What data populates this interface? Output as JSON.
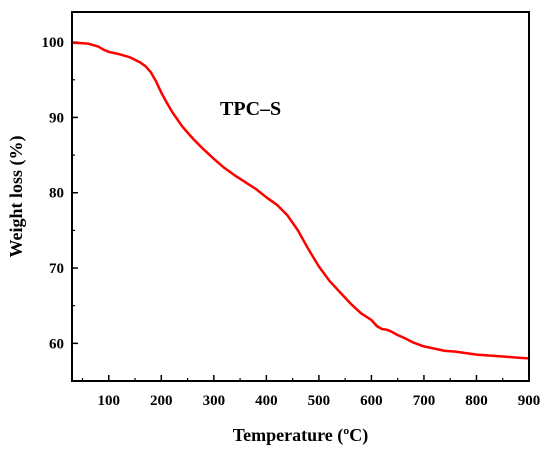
{
  "chart_data": {
    "type": "line",
    "xlabel": "Temperature (ºC)",
    "ylabel": "Weight loss (%)",
    "xlim": [
      30,
      900
    ],
    "ylim": [
      55,
      104
    ],
    "xticks": [
      100,
      200,
      300,
      400,
      500,
      600,
      700,
      800,
      900
    ],
    "yticks": [
      60,
      70,
      80,
      90,
      100
    ],
    "grid": false,
    "legend": "none",
    "annotations": [
      {
        "text": "TPC–S",
        "x": 370,
        "y": 90.3
      }
    ],
    "series": [
      {
        "color": "#ff0000",
        "x": [
          30,
          40,
          60,
          80,
          90,
          100,
          120,
          140,
          160,
          170,
          180,
          190,
          200,
          210,
          220,
          240,
          260,
          280,
          300,
          320,
          340,
          360,
          380,
          400,
          420,
          440,
          460,
          480,
          500,
          520,
          540,
          560,
          580,
          600,
          610,
          620,
          630,
          640,
          650,
          660,
          680,
          700,
          720,
          740,
          760,
          780,
          800,
          820,
          840,
          860,
          880,
          900
        ],
        "y": [
          99.9,
          99.9,
          99.8,
          99.4,
          99.0,
          98.7,
          98.4,
          98.0,
          97.3,
          96.8,
          96.0,
          94.8,
          93.3,
          92.0,
          90.8,
          88.8,
          87.2,
          85.8,
          84.5,
          83.3,
          82.3,
          81.4,
          80.5,
          79.4,
          78.4,
          77.0,
          75.0,
          72.5,
          70.2,
          68.3,
          66.8,
          65.3,
          64.0,
          63.1,
          62.3,
          61.9,
          61.8,
          61.5,
          61.1,
          60.8,
          60.1,
          59.6,
          59.3,
          59.0,
          58.9,
          58.7,
          58.5,
          58.4,
          58.3,
          58.2,
          58.1,
          58.0
        ]
      }
    ]
  }
}
